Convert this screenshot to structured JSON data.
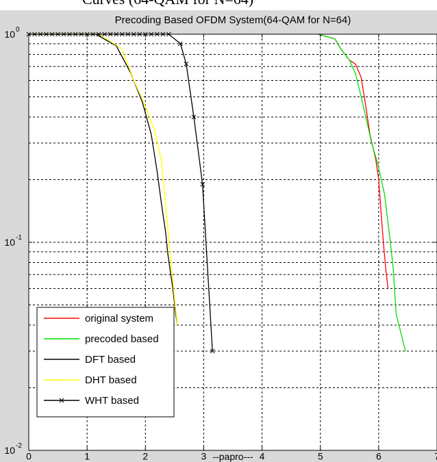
{
  "header_fragment": "Curves (64-QAM for N=64)",
  "chart_data": {
    "type": "line",
    "title": "Precoding Based OFDM System(64-QAM for N=64)",
    "xlabel": "--papro---",
    "ylabel": "",
    "xlim": [
      0,
      7
    ],
    "ylim": [
      0.01,
      1
    ],
    "yscale": "log",
    "grid": true,
    "legend_position": "bottom-left",
    "x_ticks": [
      "0",
      "1",
      "2",
      "3",
      "4",
      "5",
      "6",
      "7"
    ],
    "y_ticks": [
      {
        "value": 1,
        "base": "10",
        "exp": "0"
      },
      {
        "value": 0.1,
        "base": "10",
        "exp": "-1"
      },
      {
        "value": 0.01,
        "base": "10",
        "exp": "-2"
      }
    ],
    "series": [
      {
        "name": "original system",
        "color": "#ff0000",
        "marker": "none",
        "x": [
          4.96,
          5.25,
          5.35,
          5.5,
          5.6,
          5.7,
          5.78,
          5.85,
          5.95,
          6.0,
          6.04,
          6.08,
          6.12,
          6.16
        ],
        "y": [
          1.0,
          0.95,
          0.85,
          0.75,
          0.72,
          0.62,
          0.45,
          0.33,
          0.25,
          0.2,
          0.14,
          0.1,
          0.075,
          0.06
        ]
      },
      {
        "name": "precoded based",
        "color": "#00dd00",
        "marker": "none",
        "x": [
          4.96,
          5.25,
          5.35,
          5.5,
          5.6,
          5.7,
          5.78,
          5.88,
          5.98,
          6.1,
          6.2,
          6.25,
          6.3,
          6.4,
          6.46
        ],
        "y": [
          1.0,
          0.95,
          0.85,
          0.75,
          0.65,
          0.5,
          0.4,
          0.3,
          0.24,
          0.17,
          0.1,
          0.075,
          0.045,
          0.035,
          0.03
        ]
      },
      {
        "name": "DFT based",
        "color": "#000000",
        "marker": "none",
        "x": [
          0,
          1.15,
          1.5,
          1.75,
          1.95,
          2.1,
          2.2,
          2.28,
          2.35,
          2.38,
          2.42,
          2.47,
          2.52,
          2.55
        ],
        "y": [
          1.0,
          1.0,
          0.88,
          0.65,
          0.47,
          0.33,
          0.22,
          0.15,
          0.11,
          0.09,
          0.075,
          0.06,
          0.045,
          0.04
        ]
      },
      {
        "name": "DHT based",
        "color": "#ffff00",
        "marker": "none",
        "x": [
          0,
          1.2,
          1.6,
          1.8,
          2.0,
          2.15,
          2.27,
          2.33,
          2.38,
          2.42,
          2.47,
          2.51,
          2.55
        ],
        "y": [
          1.0,
          1.0,
          0.85,
          0.6,
          0.45,
          0.35,
          0.25,
          0.17,
          0.12,
          0.09,
          0.065,
          0.05,
          0.04
        ]
      },
      {
        "name": "WHT based",
        "color": "#000000",
        "marker": "x",
        "x": [
          0,
          0.1,
          0.2,
          0.3,
          0.4,
          0.5,
          0.6,
          0.7,
          0.8,
          0.9,
          1.0,
          1.1,
          1.2,
          1.3,
          1.4,
          1.5,
          1.6,
          1.7,
          1.8,
          1.9,
          2.0,
          2.1,
          2.2,
          2.3,
          2.4,
          2.6,
          2.7,
          2.83,
          2.98,
          3.15
        ],
        "y": [
          1.0,
          1.0,
          1.0,
          1.0,
          1.0,
          1.0,
          1.0,
          1.0,
          1.0,
          1.0,
          1.0,
          1.0,
          1.0,
          1.0,
          1.0,
          1.0,
          1.0,
          1.0,
          1.0,
          1.0,
          1.0,
          1.0,
          1.0,
          1.0,
          1.0,
          0.9,
          0.72,
          0.4,
          0.19,
          0.03
        ]
      }
    ]
  }
}
